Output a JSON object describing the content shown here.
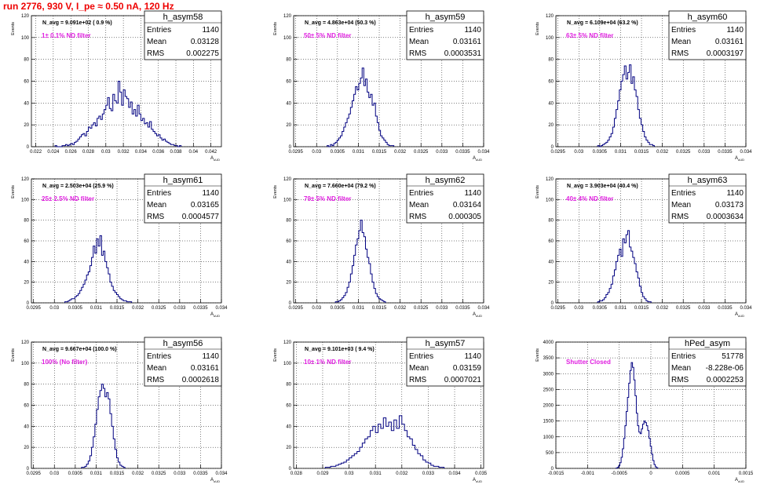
{
  "title": "run 2776,   930 V, I_pe ≈ 0.50 nA, 120 Hz",
  "chart_data": [
    {
      "type": "bar",
      "name": "h_asym58",
      "nline": "N_avg = 9.091e+02 ( 0.9 %)",
      "filter": "1± 0.1% ND filter",
      "stats": [
        [
          "Entries",
          "1140"
        ],
        [
          "Mean",
          "0.03128"
        ],
        [
          "RMS",
          "0.002275"
        ]
      ],
      "xlabel": "A_uUD",
      "ylabel": "Events",
      "xlim": [
        0.0215,
        0.0432
      ],
      "ylim": [
        0,
        120
      ],
      "xticks": [
        0.022,
        0.024,
        0.026,
        0.028,
        0.03,
        0.032,
        0.034,
        0.036,
        0.038,
        0.04,
        0.042
      ],
      "xtick_labels": [
        "0.022",
        "0.024",
        "0.026",
        "0.028",
        "0.03",
        "0.032",
        "0.034",
        "0.036",
        "0.038",
        "0.04",
        "0.042"
      ],
      "yticks": [
        0,
        20,
        40,
        60,
        80,
        100,
        120
      ],
      "bin_start": 0.0242,
      "bin_width": 0.0002,
      "counts": [
        1,
        0,
        0,
        0,
        1,
        1,
        2,
        1,
        2,
        3,
        2,
        4,
        5,
        7,
        9,
        11,
        12,
        10,
        14,
        18,
        17,
        20,
        22,
        19,
        26,
        28,
        25,
        30,
        34,
        38,
        45,
        35,
        33,
        48,
        42,
        40,
        60,
        50,
        38,
        52,
        46,
        44,
        36,
        41,
        30,
        34,
        28,
        38,
        30,
        24,
        26,
        21,
        22,
        18,
        23,
        16,
        14,
        12,
        10,
        11,
        8,
        6,
        7,
        5,
        4,
        3,
        2,
        2,
        1,
        1,
        0,
        1
      ]
    },
    {
      "type": "bar",
      "name": "h_asym59",
      "nline": "N_avg = 4.863e+04 (50.3 %)",
      "filter": "50± 5% ND filter",
      "stats": [
        [
          "Entries",
          "1140"
        ],
        [
          "Mean",
          "0.03161"
        ],
        [
          "RMS",
          "0.0003531"
        ]
      ],
      "xlabel": "A_uUD",
      "ylabel": "Events",
      "xlim": [
        0.02945,
        0.034
      ],
      "ylim": [
        0,
        120
      ],
      "xticks": [
        0.0295,
        0.03,
        0.0305,
        0.031,
        0.0315,
        0.032,
        0.0325,
        0.033,
        0.0335,
        0.034
      ],
      "xtick_labels": [
        "0.0295",
        "0.03",
        "0.0305",
        "0.031",
        "0.0315",
        "0.032",
        "0.0325",
        "0.033",
        "0.0335",
        "0.034"
      ],
      "yticks": [
        0,
        20,
        40,
        60,
        80,
        100,
        120
      ],
      "bin_start": 0.03025,
      "bin_width": 4e-05,
      "counts": [
        1,
        0,
        2,
        1,
        3,
        4,
        6,
        8,
        10,
        14,
        18,
        22,
        26,
        30,
        36,
        42,
        48,
        55,
        52,
        58,
        63,
        72,
        56,
        62,
        50,
        45,
        48,
        38,
        40,
        28,
        22,
        15,
        10,
        8,
        6,
        4,
        2,
        1,
        1,
        1
      ]
    },
    {
      "type": "bar",
      "name": "h_asym60",
      "nline": "N_avg = 6.109e+04 (63.2 %)",
      "filter": "63± 5% ND filter",
      "stats": [
        [
          "Entries",
          "1140"
        ],
        [
          "Mean",
          "0.03161"
        ],
        [
          "RMS",
          "0.0003197"
        ]
      ],
      "xlabel": "A_uUD",
      "ylabel": "Events",
      "xlim": [
        0.02945,
        0.034
      ],
      "ylim": [
        0,
        120
      ],
      "xticks": [
        0.0295,
        0.03,
        0.0305,
        0.031,
        0.0315,
        0.032,
        0.0325,
        0.033,
        0.0335,
        0.034
      ],
      "xtick_labels": [
        "0.0295",
        "0.03",
        "0.0305",
        "0.031",
        "0.0315",
        "0.032",
        "0.0325",
        "0.033",
        "0.0335",
        "0.034"
      ],
      "yticks": [
        0,
        20,
        40,
        60,
        80,
        100,
        120
      ],
      "bin_start": 0.03045,
      "bin_width": 4e-05,
      "counts": [
        1,
        0,
        1,
        2,
        3,
        4,
        6,
        9,
        12,
        18,
        26,
        34,
        42,
        52,
        60,
        66,
        74,
        62,
        68,
        75,
        58,
        64,
        52,
        46,
        34,
        26,
        20,
        14,
        9,
        6,
        4,
        2,
        2,
        1
      ]
    },
    {
      "type": "bar",
      "name": "h_asym61",
      "nline": "N_avg = 2.503e+04 (25.9 %)",
      "filter": "25± 2.5% ND filter",
      "stats": [
        [
          "Entries",
          "1140"
        ],
        [
          "Mean",
          "0.03165"
        ],
        [
          "RMS",
          "0.0004577"
        ]
      ],
      "xlabel": "A_uUD",
      "ylabel": "Events",
      "xlim": [
        0.02945,
        0.034
      ],
      "ylim": [
        0,
        120
      ],
      "xticks": [
        0.0295,
        0.03,
        0.0305,
        0.031,
        0.0315,
        0.032,
        0.0325,
        0.033,
        0.0335,
        0.034
      ],
      "xtick_labels": [
        "0.0295",
        "0.03",
        "0.0305",
        "0.031",
        "0.0315",
        "0.032",
        "0.0325",
        "0.033",
        "0.0335",
        "0.034"
      ],
      "yticks": [
        0,
        20,
        40,
        60,
        80,
        100,
        120
      ],
      "bin_start": 0.03025,
      "bin_width": 4e-05,
      "counts": [
        1,
        1,
        2,
        3,
        4,
        4,
        6,
        7,
        9,
        12,
        15,
        18,
        22,
        27,
        30,
        36,
        44,
        55,
        48,
        62,
        55,
        65,
        46,
        50,
        40,
        34,
        28,
        20,
        16,
        12,
        10,
        8,
        6,
        4,
        3,
        2,
        2,
        1,
        1,
        1
      ]
    },
    {
      "type": "bar",
      "name": "h_asym62",
      "nline": "N_avg = 7.660e+04 (79.2 %)",
      "filter": "79± 5% ND filter",
      "stats": [
        [
          "Entries",
          "1140"
        ],
        [
          "Mean",
          "0.03164"
        ],
        [
          "RMS",
          "0.000305"
        ]
      ],
      "xlabel": "A_uUD",
      "ylabel": "Events",
      "xlim": [
        0.02945,
        0.034
      ],
      "ylim": [
        0,
        120
      ],
      "xticks": [
        0.0295,
        0.03,
        0.0305,
        0.031,
        0.0315,
        0.032,
        0.0325,
        0.033,
        0.0335,
        0.034
      ],
      "xtick_labels": [
        "0.0295",
        "0.03",
        "0.0305",
        "0.031",
        "0.0315",
        "0.032",
        "0.0325",
        "0.033",
        "0.0335",
        "0.034"
      ],
      "yticks": [
        0,
        20,
        40,
        60,
        80,
        100,
        120
      ],
      "bin_start": 0.03045,
      "bin_width": 4e-05,
      "counts": [
        1,
        1,
        2,
        3,
        5,
        7,
        10,
        15,
        20,
        28,
        36,
        46,
        56,
        62,
        70,
        80,
        68,
        64,
        52,
        44,
        38,
        28,
        20,
        14,
        9,
        6,
        4,
        3,
        2,
        1
      ]
    },
    {
      "type": "bar",
      "name": "h_asym63",
      "nline": "N_avg = 3.903e+04 (40.4 %)",
      "filter": "40± 4% ND filter",
      "stats": [
        [
          "Entries",
          "1140"
        ],
        [
          "Mean",
          "0.03173"
        ],
        [
          "RMS",
          "0.0003634"
        ]
      ],
      "xlabel": "A_uUD",
      "ylabel": "Events",
      "xlim": [
        0.02945,
        0.034
      ],
      "ylim": [
        0,
        120
      ],
      "xticks": [
        0.0295,
        0.03,
        0.0305,
        0.031,
        0.0315,
        0.032,
        0.0325,
        0.033,
        0.0335,
        0.034
      ],
      "xtick_labels": [
        "0.0295",
        "0.03",
        "0.0305",
        "0.031",
        "0.0315",
        "0.032",
        "0.0325",
        "0.033",
        "0.0335",
        "0.034"
      ],
      "yticks": [
        0,
        20,
        40,
        60,
        80,
        100,
        120
      ],
      "bin_start": 0.03045,
      "bin_width": 4e-05,
      "counts": [
        1,
        2,
        2,
        3,
        5,
        8,
        10,
        14,
        18,
        26,
        32,
        40,
        46,
        52,
        45,
        62,
        58,
        66,
        70,
        54,
        50,
        44,
        38,
        30,
        24,
        16,
        10,
        6,
        4,
        2,
        1,
        1
      ]
    },
    {
      "type": "bar",
      "name": "h_asym56",
      "nline": "N_avg = 9.667e+04 (100.0 %)",
      "filter": "100% (No filter)",
      "stats": [
        [
          "Entries",
          "1140"
        ],
        [
          "Mean",
          "0.03161"
        ],
        [
          "RMS",
          "0.0002618"
        ]
      ],
      "xlabel": "A_uUD",
      "ylabel": "Events",
      "xlim": [
        0.02945,
        0.034
      ],
      "ylim": [
        0,
        120
      ],
      "xticks": [
        0.0295,
        0.03,
        0.0305,
        0.031,
        0.0315,
        0.032,
        0.0325,
        0.033,
        0.0335,
        0.034
      ],
      "xtick_labels": [
        "0.0295",
        "0.03",
        "0.0305",
        "0.031",
        "0.0315",
        "0.032",
        "0.0325",
        "0.033",
        "0.0335",
        "0.034"
      ],
      "yticks": [
        0,
        20,
        40,
        60,
        80,
        100,
        120
      ],
      "bin_start": 0.03065,
      "bin_width": 4e-05,
      "counts": [
        1,
        1,
        2,
        4,
        7,
        12,
        20,
        30,
        42,
        56,
        68,
        74,
        80,
        76,
        68,
        72,
        66,
        52,
        40,
        28,
        18,
        10,
        6,
        3,
        2,
        1
      ]
    },
    {
      "type": "bar",
      "name": "h_asym57",
      "nline": "N_avg = 9.101e+03 ( 9.4 %)",
      "filter": "10± 1% ND filter",
      "stats": [
        [
          "Entries",
          "1140"
        ],
        [
          "Mean",
          "0.03159"
        ],
        [
          "RMS",
          "0.0007021"
        ]
      ],
      "xlabel": "A_uUD",
      "ylabel": "Events",
      "xlim": [
        0.0279,
        0.0351
      ],
      "ylim": [
        0,
        120
      ],
      "xticks": [
        0.028,
        0.029,
        0.03,
        0.031,
        0.032,
        0.033,
        0.034,
        0.035
      ],
      "xtick_labels": [
        "0.028",
        "0.029",
        "0.03",
        "0.031",
        "0.032",
        "0.033",
        "0.034",
        "0.035"
      ],
      "yticks": [
        0,
        20,
        40,
        60,
        80,
        100,
        120
      ],
      "bin_start": 0.0291,
      "bin_width": 0.0001,
      "counts": [
        1,
        1,
        2,
        2,
        3,
        4,
        5,
        6,
        8,
        10,
        12,
        14,
        16,
        20,
        24,
        28,
        30,
        36,
        40,
        34,
        42,
        38,
        48,
        40,
        44,
        36,
        46,
        38,
        50,
        42,
        36,
        30,
        28,
        22,
        18,
        14,
        12,
        8,
        6,
        5,
        3,
        2,
        2,
        1,
        1
      ]
    },
    {
      "type": "bar",
      "name": "hPed_asym",
      "nline": "",
      "filter": "Shutter Closed",
      "stats": [
        [
          "Entries",
          "51778"
        ],
        [
          "Mean",
          "-8.228e-06"
        ],
        [
          "RMS",
          "0.0002253"
        ]
      ],
      "xlabel": "A_uUD",
      "ylabel": "Events",
      "xlim": [
        -0.0015,
        0.0015
      ],
      "ylim": [
        0,
        4000
      ],
      "xticks": [
        -0.0015,
        -0.001,
        -0.0005,
        0,
        0.0005,
        0.001,
        0.0015
      ],
      "xtick_labels": [
        "-0.0015",
        "-0.001",
        "-0.0005",
        "0",
        "0.0005",
        "0.001",
        "0.0015"
      ],
      "yticks": [
        0,
        500,
        1000,
        1500,
        2000,
        2500,
        3000,
        3500,
        4000
      ],
      "bin_start": -0.00055,
      "bin_width": 2e-05,
      "counts": [
        10,
        30,
        80,
        180,
        350,
        620,
        950,
        1350,
        1800,
        2250,
        2700,
        3100,
        3350,
        3200,
        2800,
        2300,
        1750,
        1350,
        1150,
        1100,
        1250,
        1400,
        1500,
        1450,
        1350,
        1200,
        950,
        700,
        450,
        250,
        120,
        50,
        20
      ]
    }
  ]
}
